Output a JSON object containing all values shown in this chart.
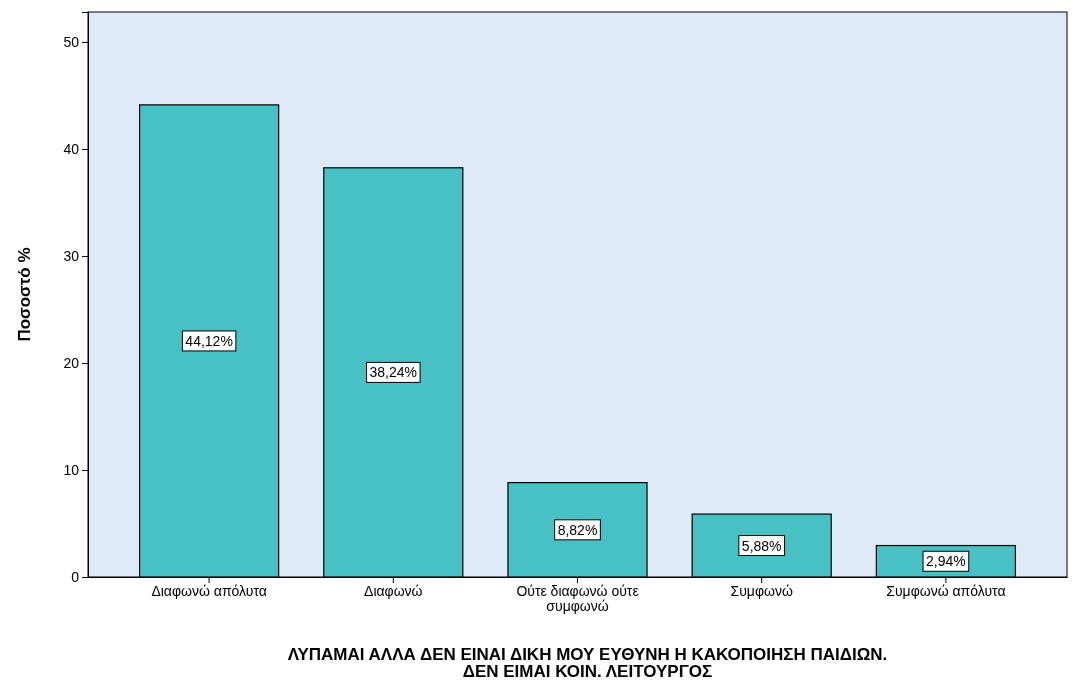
{
  "chart_data": {
    "type": "bar",
    "categories": [
      "Διαφωνώ απόλυτα",
      "Διαφωνώ",
      "Ούτε διαφωνώ ούτε συμφωνώ",
      "Συμφωνώ",
      "Συμφωνώ απόλυτα"
    ],
    "values": [
      44.12,
      38.24,
      8.82,
      5.88,
      2.94
    ],
    "value_labels": [
      "44,12%",
      "38,24%",
      "8,82%",
      "5,88%",
      "2,94%"
    ],
    "color": "#48c1c5",
    "ylim": [
      0,
      52.8
    ],
    "yticks": [
      0,
      10,
      20,
      30,
      40,
      50
    ],
    "ylabel": "Ποσοστό %",
    "xlabel": "ΛΥΠΑΜΑΙ ΑΛΛΑ ΔΕΝ ΕΙΝΑΙ ΔΙΚΗ ΜΟΥ ΕΥΘΥΝΗ Η ΚΑΚΟΠΟΙΗΣΗ ΠΑΙΔΙΩΝ. ΔΕΝ ΕΙΜΑΙ ΚΟΙΝ. ΛΕΙΤΟΥΡΓΟΣ",
    "grid": false
  }
}
